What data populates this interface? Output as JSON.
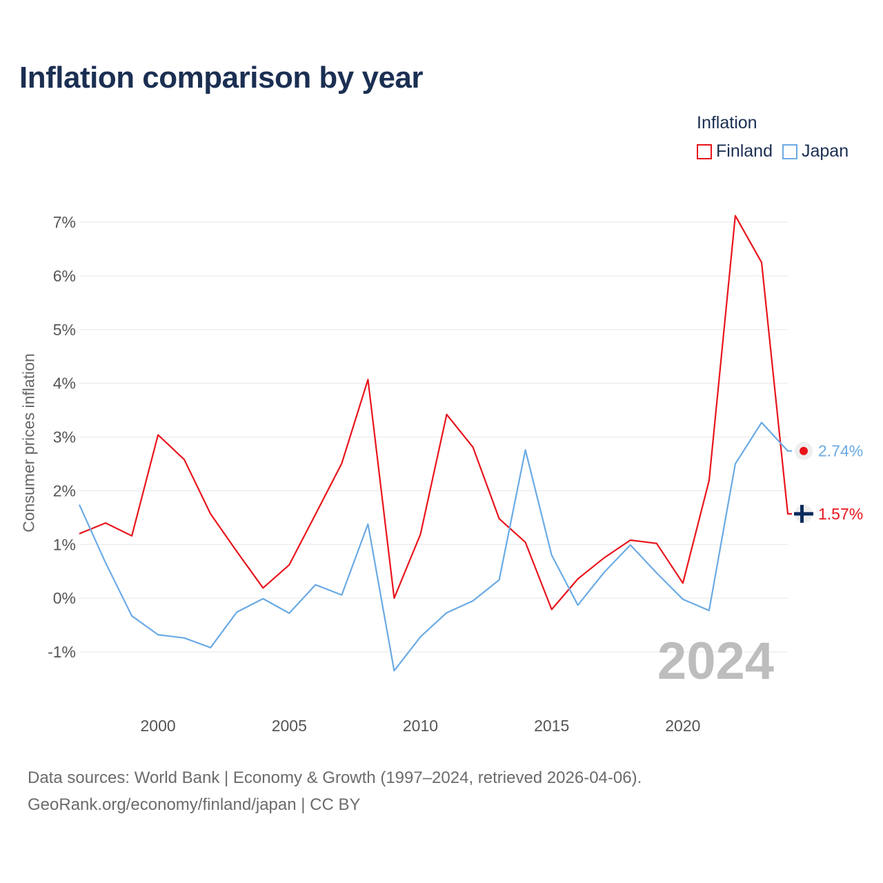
{
  "title": "Inflation comparison by year",
  "legend": {
    "title": "Inflation",
    "items": [
      {
        "name": "Finland",
        "color": "#e8141b"
      },
      {
        "name": "Japan",
        "color": "#6aaae4"
      }
    ]
  },
  "source": {
    "line1": "Data sources: World Bank | Economy & Growth (1997–2024, retrieved 2026-04-06).",
    "line2": "GeoRank.org/economy/finland/japan | CC BY"
  },
  "chart_data": {
    "type": "line",
    "title": "Inflation comparison by year",
    "xlabel": "",
    "ylabel": "Consumer prices inflation",
    "x": [
      1997,
      1998,
      1999,
      2000,
      2001,
      2002,
      2003,
      2004,
      2005,
      2006,
      2007,
      2008,
      2009,
      2010,
      2011,
      2012,
      2013,
      2014,
      2015,
      2016,
      2017,
      2018,
      2019,
      2020,
      2021,
      2022,
      2023,
      2024
    ],
    "xlim": [
      1997,
      2024
    ],
    "xticks": [
      2000,
      2005,
      2010,
      2015,
      2020
    ],
    "ylim": [
      -1,
      7
    ],
    "yticks": [
      -1,
      0,
      1,
      2,
      3,
      4,
      5,
      6,
      7
    ],
    "ytick_labels": [
      "-1%",
      "0%",
      "1%",
      "2%",
      "3%",
      "4%",
      "5%",
      "6%",
      "7%"
    ],
    "year_watermark": "2024",
    "series": [
      {
        "name": "Finland",
        "color": "#e8141b",
        "end_label": "1.57%",
        "values": [
          1.2,
          1.4,
          1.16,
          3.04,
          2.58,
          1.57,
          0.87,
          0.19,
          0.62,
          1.56,
          2.51,
          4.07,
          0.0,
          1.19,
          3.42,
          2.81,
          1.48,
          1.04,
          -0.21,
          0.36,
          0.75,
          1.08,
          1.02,
          0.28,
          2.19,
          7.12,
          6.25,
          1.57
        ]
      },
      {
        "name": "Japan",
        "color": "#6aaae4",
        "end_label": "2.74%",
        "values": [
          1.74,
          0.66,
          -0.33,
          -0.68,
          -0.74,
          -0.92,
          -0.26,
          -0.01,
          -0.28,
          0.25,
          0.06,
          1.38,
          -1.35,
          -0.72,
          -0.27,
          -0.05,
          0.34,
          2.76,
          0.8,
          -0.13,
          0.48,
          0.99,
          0.47,
          -0.02,
          -0.23,
          2.5,
          3.27,
          2.74
        ]
      }
    ]
  }
}
